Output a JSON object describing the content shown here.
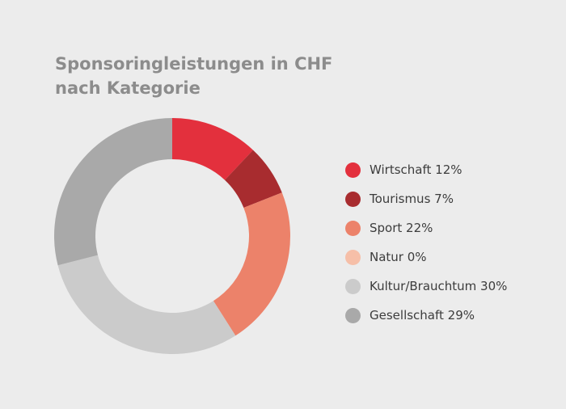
{
  "chart_data": {
    "type": "pie",
    "title_lines": [
      "Sponsoringleistungen in CHF",
      "nach Kategorie"
    ],
    "categories": [
      "Wirtschaft",
      "Tourismus",
      "Sport",
      "Natur",
      "Kultur/Brauchtum",
      "Gesellschaft"
    ],
    "values": [
      12,
      7,
      22,
      0,
      30,
      29
    ],
    "unit": "%",
    "legend_labels": [
      "Wirtschaft 12%",
      "Tourismus 7%",
      "Sport 22%",
      "Natur 0%",
      "Kultur/Brauchtum 30%",
      "Gesellschaft 29%"
    ],
    "colors": [
      "#e3303d",
      "#a82c2f",
      "#ec826a",
      "#f6bfa8",
      "#cbcbcb",
      "#a9a9a9"
    ],
    "donut": true,
    "legend_position": "right"
  }
}
